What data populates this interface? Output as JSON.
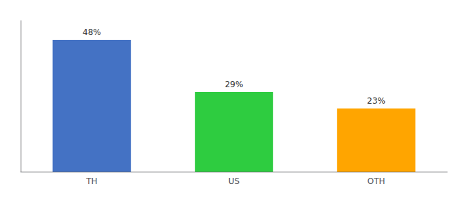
{
  "chart_data": {
    "type": "bar",
    "categories": [
      "TH",
      "US",
      "OTH"
    ],
    "values": [
      48,
      29,
      23
    ],
    "value_labels": [
      "48%",
      "29%",
      "23%"
    ],
    "colors": [
      "#4472C4",
      "#2ECC40",
      "#FFA500"
    ],
    "ylim": [
      0,
      55
    ],
    "data_labels": true,
    "tick_labels": "x",
    "grid": false
  }
}
